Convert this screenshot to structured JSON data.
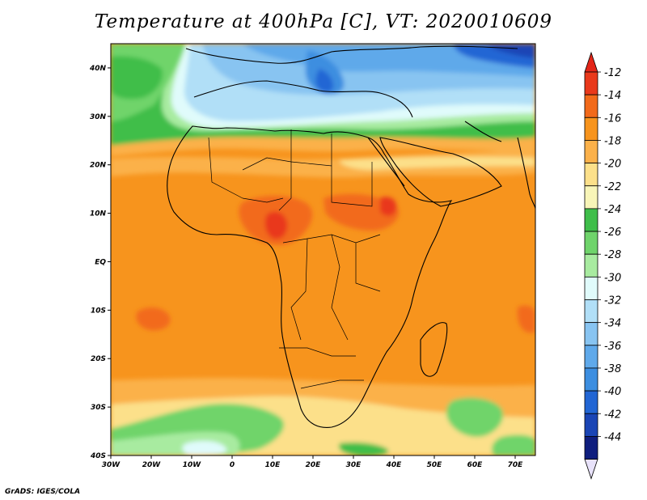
{
  "title": "Temperature at 400hPa [C], VT: 2020010609",
  "footer": "GrADS: IGES/COLA",
  "map": {
    "projection": "lat-lon",
    "lon_range": [
      -30,
      75
    ],
    "lat_range": [
      -40,
      45
    ],
    "x_ticks": [
      "30W",
      "20W",
      "10W",
      "0",
      "10E",
      "20E",
      "30E",
      "40E",
      "50E",
      "60E",
      "70E"
    ],
    "y_ticks": [
      "40N",
      "30N",
      "20N",
      "10N",
      "EQ",
      "10S",
      "20S",
      "30S",
      "40S"
    ]
  },
  "colorbar": {
    "labels": [
      "-12",
      "-14",
      "-16",
      "-18",
      "-20",
      "-22",
      "-24",
      "-26",
      "-28",
      "-30",
      "-32",
      "-34",
      "-36",
      "-38",
      "-40",
      "-42",
      "-44"
    ],
    "colors": [
      "#e9391b",
      "#f26a1a",
      "#f7941d",
      "#fbb14a",
      "#fce08a",
      "#f8f5b8",
      "#3fbe4a",
      "#6fd46b",
      "#a8eba0",
      "#e0fbfb",
      "#b1dff7",
      "#88c4f1",
      "#5fa9ea",
      "#3c8ee0",
      "#2266d4",
      "#1a45b5",
      "#0f1e7e"
    ],
    "end_colors": {
      "top": "#e32518",
      "bottom": "#e8e2fa"
    }
  }
}
